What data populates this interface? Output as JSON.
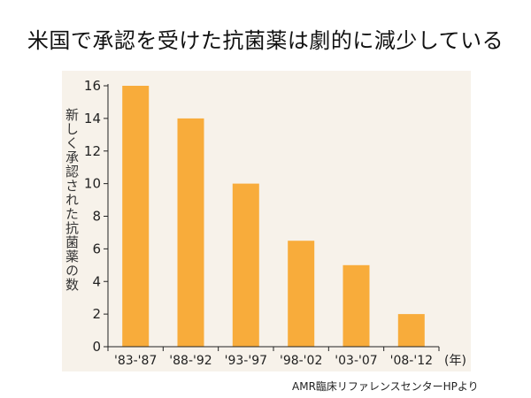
{
  "title": "米国で承認を受けた抗菌薬は劇的に減少している",
  "source": "AMR臨床リファレンスセンターHPより",
  "chart_data": {
    "type": "bar",
    "title": "米国で承認を受けた抗菌薬は劇的に減少している",
    "ylabel": "新しく承認された抗菌薬の数",
    "xlabel": "(年)",
    "categories": [
      "'83-'87",
      "'88-'92",
      "'93-'97",
      "'98-'02",
      "'03-'07",
      "'08-'12"
    ],
    "values": [
      16,
      14,
      10,
      6.5,
      5,
      2
    ],
    "ylim": [
      0,
      16
    ],
    "yticks": [
      "0",
      "2",
      "4",
      "6",
      "8",
      "10",
      "12",
      "14",
      "16"
    ],
    "bar_color": "#f8ac3b",
    "background_color": "#f7f2ea",
    "grid": false,
    "legend": "none"
  }
}
